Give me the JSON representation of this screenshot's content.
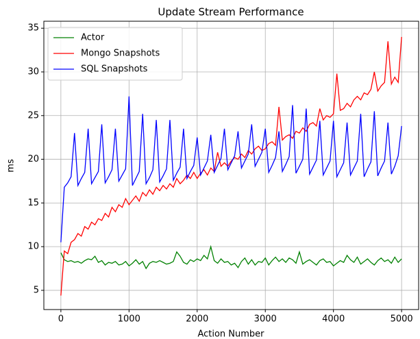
{
  "chart_data": {
    "type": "line",
    "title": "Update Stream Performance",
    "xlabel": "Action Number",
    "ylabel": "ms",
    "x": [
      0,
      50,
      100,
      150,
      200,
      250,
      300,
      350,
      400,
      450,
      500,
      550,
      600,
      650,
      700,
      750,
      800,
      850,
      900,
      950,
      1000,
      1050,
      1100,
      1150,
      1200,
      1250,
      1300,
      1350,
      1400,
      1450,
      1500,
      1550,
      1600,
      1650,
      1700,
      1750,
      1800,
      1850,
      1900,
      1950,
      2000,
      2050,
      2100,
      2150,
      2200,
      2250,
      2300,
      2350,
      2400,
      2450,
      2500,
      2550,
      2600,
      2650,
      2700,
      2750,
      2800,
      2850,
      2900,
      2950,
      3000,
      3050,
      3100,
      3150,
      3200,
      3250,
      3300,
      3350,
      3400,
      3450,
      3500,
      3550,
      3600,
      3650,
      3700,
      3750,
      3800,
      3850,
      3900,
      3950,
      4000,
      4050,
      4100,
      4150,
      4200,
      4250,
      4300,
      4350,
      4400,
      4450,
      4500,
      4550,
      4600,
      4650,
      4700,
      4750,
      4800,
      4850,
      4900,
      4950,
      5000
    ],
    "series": [
      {
        "name": "Actor",
        "color": "#008000",
        "values": [
          9.3,
          8.5,
          8.3,
          8.4,
          8.2,
          8.3,
          8.1,
          8.4,
          8.6,
          8.5,
          8.9,
          8.2,
          8.4,
          7.9,
          8.2,
          8.1,
          8.3,
          7.9,
          8.0,
          8.3,
          7.8,
          8.1,
          8.5,
          8.0,
          8.3,
          7.5,
          8.1,
          8.3,
          8.2,
          8.4,
          8.2,
          8.0,
          8.1,
          8.3,
          9.4,
          8.9,
          8.2,
          8.0,
          8.5,
          8.3,
          8.6,
          8.4,
          9.0,
          8.6,
          10.0,
          8.4,
          8.1,
          8.6,
          8.2,
          8.3,
          7.9,
          8.1,
          7.6,
          8.3,
          8.7,
          8.0,
          8.5,
          7.9,
          8.3,
          8.2,
          8.7,
          7.9,
          8.4,
          8.8,
          8.3,
          8.6,
          8.2,
          8.7,
          8.5,
          8.1,
          9.4,
          8.0,
          8.3,
          8.5,
          8.2,
          7.9,
          8.4,
          8.6,
          8.2,
          8.3,
          7.8,
          8.1,
          8.4,
          8.2,
          9.0,
          8.5,
          8.2,
          8.8,
          8.0,
          8.3,
          8.6,
          8.2,
          7.9,
          8.4,
          8.7,
          8.3,
          8.5,
          8.1,
          8.8,
          8.2,
          8.6
        ]
      },
      {
        "name": "Mongo Snapshots",
        "color": "#ff0000",
        "values": [
          4.4,
          9.5,
          9.2,
          10.5,
          10.8,
          11.5,
          11.2,
          12.3,
          12.0,
          12.8,
          12.5,
          13.2,
          13.0,
          13.8,
          13.4,
          14.5,
          14.0,
          14.8,
          14.5,
          15.5,
          14.8,
          15.3,
          15.8,
          15.2,
          16.2,
          15.8,
          16.5,
          16.0,
          16.8,
          16.4,
          17.0,
          16.6,
          17.2,
          16.8,
          17.8,
          17.2,
          17.6,
          18.2,
          17.8,
          18.5,
          17.8,
          18.4,
          18.8,
          18.2,
          19.0,
          18.6,
          20.8,
          19.2,
          19.6,
          19.2,
          19.8,
          20.2,
          20.0,
          20.6,
          20.2,
          21.0,
          20.6,
          21.2,
          21.5,
          21.0,
          21.2,
          21.8,
          22.0,
          21.6,
          26.0,
          22.2,
          22.6,
          22.8,
          22.4,
          23.2,
          23.0,
          23.6,
          23.2,
          24.0,
          24.2,
          23.8,
          25.8,
          24.5,
          25.0,
          24.8,
          25.2,
          29.8,
          25.6,
          25.8,
          26.4,
          26.0,
          26.8,
          27.2,
          26.8,
          27.6,
          27.4,
          28.0,
          30.0,
          27.8,
          28.4,
          28.8,
          33.5,
          28.6,
          29.4,
          28.8,
          34.0
        ]
      },
      {
        "name": "SQL Snapshots",
        "color": "#0000ff",
        "values": [
          10.5,
          16.8,
          17.3,
          18.0,
          23,
          17.0,
          17.8,
          18.5,
          23.5,
          17.2,
          17.9,
          18.6,
          24,
          17.3,
          18.0,
          18.8,
          23.5,
          17.5,
          18.2,
          18.9,
          27.2,
          17.0,
          17.8,
          18.6,
          25.2,
          17.2,
          17.9,
          18.8,
          24.5,
          17.4,
          18.1,
          18.9,
          24.5,
          17.6,
          18.4,
          19.1,
          23.5,
          17.8,
          18.6,
          19.3,
          22.5,
          18.2,
          19.0,
          19.8,
          22.8,
          18.5,
          19.3,
          20.1,
          23.5,
          18.8,
          19.6,
          20.4,
          23.2,
          19.0,
          19.8,
          20.6,
          24,
          19.2,
          20.0,
          20.8,
          23.5,
          18.5,
          19.3,
          20.2,
          23.2,
          18.6,
          19.4,
          20.3,
          26.2,
          18.4,
          19.2,
          20.0,
          25.8,
          18.3,
          19.1,
          19.9,
          24.4,
          18.2,
          19.0,
          19.8,
          24.4,
          18.0,
          18.8,
          19.6,
          24.2,
          18.2,
          19.0,
          19.8,
          25.2,
          18.0,
          18.9,
          19.7,
          25.5,
          18.1,
          19.0,
          19.8,
          24.2,
          18.3,
          19.2,
          20.4,
          23.8
        ]
      }
    ],
    "xlim": [
      -250,
      5250
    ],
    "xticks": [
      0,
      1000,
      2000,
      3000,
      4000,
      5000
    ],
    "ylim": [
      2.8,
      35.8
    ],
    "yticks": [
      5,
      10,
      15,
      20,
      25,
      30,
      35
    ],
    "grid": true,
    "legend": "upper-left"
  }
}
